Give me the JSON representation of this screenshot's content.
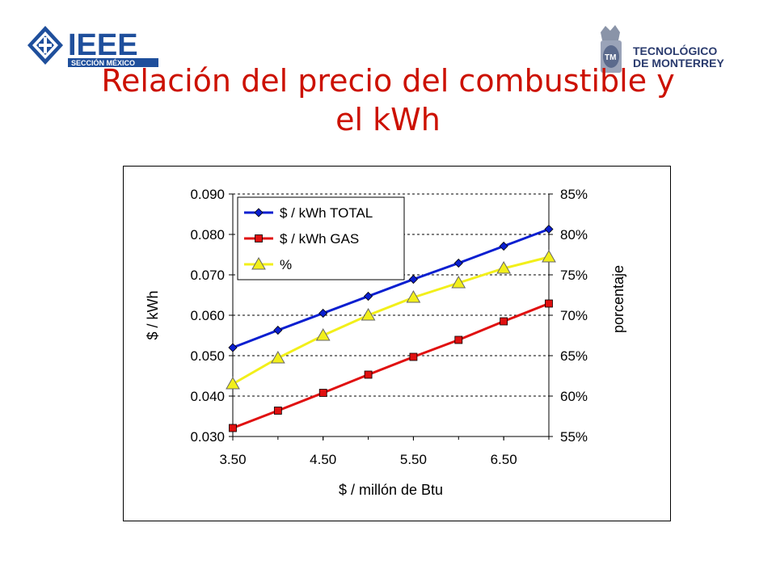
{
  "slide": {
    "title_line1": "Relación del precio del combustible y",
    "title_line2": "el kWh"
  },
  "logos": {
    "ieee_main": "IEEE",
    "ieee_sub": "SECCIÓN MÉXICO",
    "tec_line1": "TECNOLÓGICO",
    "tec_line2": "DE MONTERREY"
  },
  "colors": {
    "title": "#cc1100",
    "ieee_blue": "#1f4f9c",
    "total_series": "#0a1fd0",
    "gas_series": "#e01010",
    "pct_series": "#f2ef1a"
  },
  "chart_data": {
    "type": "line",
    "xlabel": "$ / millón de Btu",
    "ylabel": "$ / kWh",
    "y2label": "porcentaje",
    "xlim": [
      3.5,
      7.0
    ],
    "ylim": [
      0.03,
      0.09
    ],
    "y2lim": [
      0.55,
      0.85
    ],
    "xticks": [
      "3.50",
      "4.50",
      "5.50",
      "6.50"
    ],
    "yticks": [
      "0.090",
      "0.080",
      "0.070",
      "0.060",
      "0.050",
      "0.040",
      "0.030"
    ],
    "y2ticks": [
      "85%",
      "80%",
      "75%",
      "70%",
      "65%",
      "60%",
      "55%"
    ],
    "grid": "horizontal dashed",
    "legend_position": "top-left",
    "x": [
      3.5,
      4.0,
      4.5,
      5.0,
      5.5,
      6.0,
      6.5,
      7.0
    ],
    "series": [
      {
        "name": "$ / kWh TOTAL",
        "axis": "left",
        "marker": "diamond",
        "color": "#0a1fd0",
        "values": [
          0.052,
          0.0563,
          0.0605,
          0.0647,
          0.0689,
          0.0729,
          0.0771,
          0.0813
        ]
      },
      {
        "name": "$ / kWh GAS",
        "axis": "left",
        "marker": "square",
        "color": "#e01010",
        "values": [
          0.0321,
          0.0364,
          0.0408,
          0.0453,
          0.0497,
          0.0539,
          0.0585,
          0.0629
        ]
      },
      {
        "name": "%",
        "axis": "right",
        "marker": "triangle",
        "color": "#f2ef1a",
        "values": [
          0.615,
          0.647,
          0.675,
          0.7,
          0.722,
          0.74,
          0.758,
          0.772
        ]
      }
    ]
  }
}
